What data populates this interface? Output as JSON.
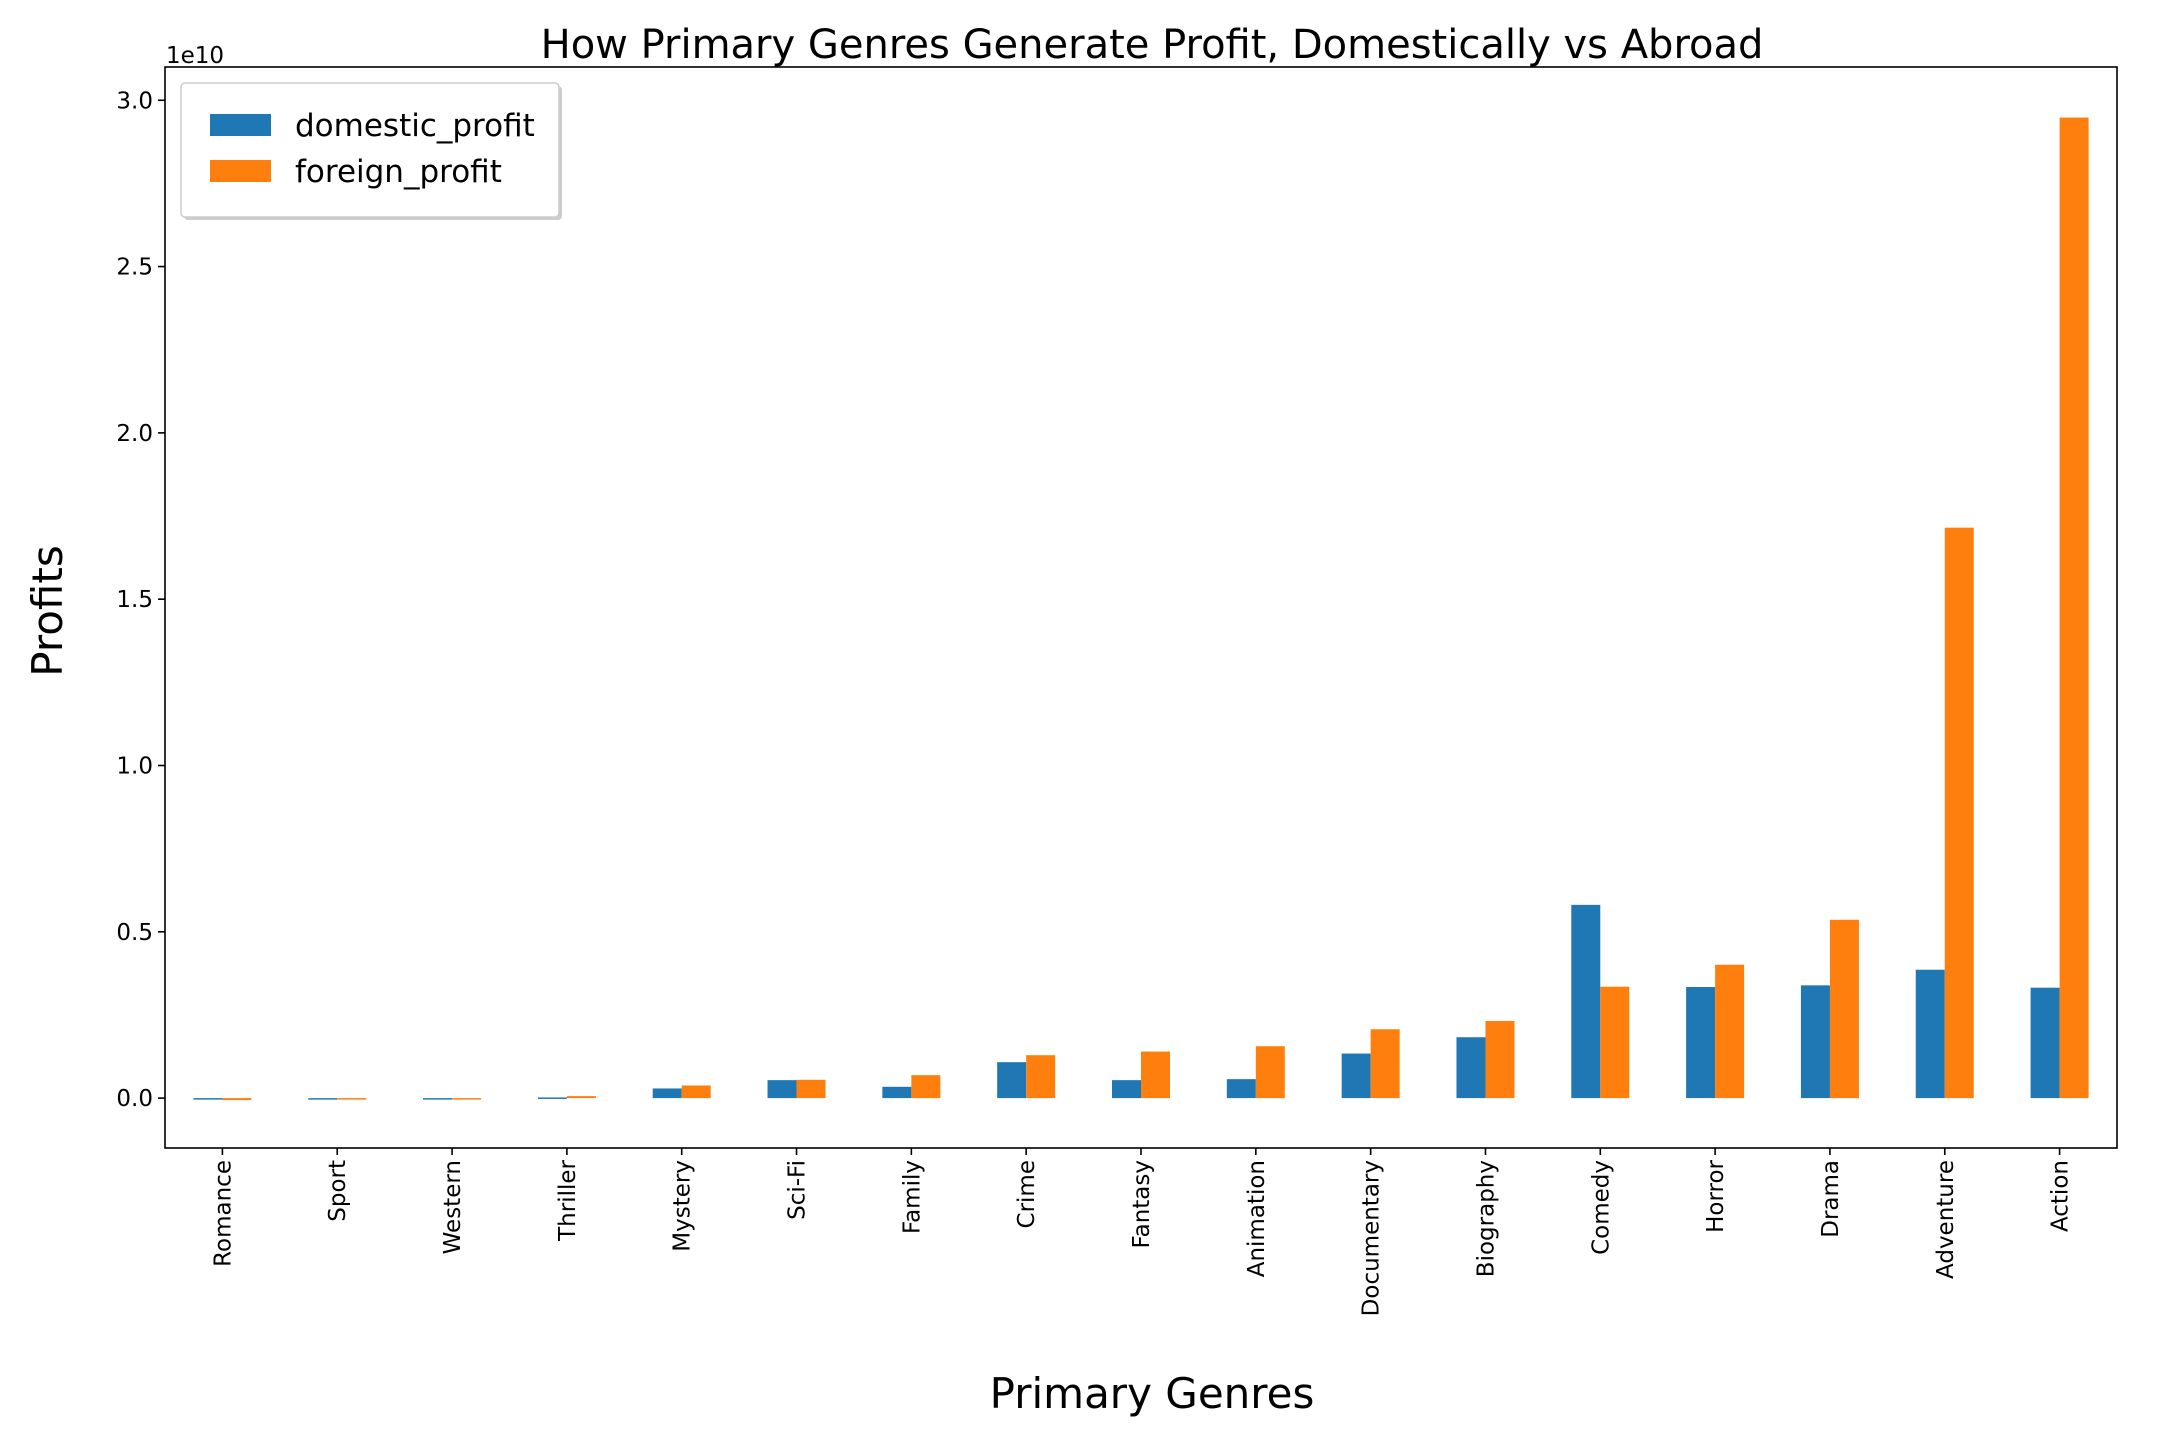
{
  "chart_data": {
    "type": "bar",
    "title": "How Primary Genres Generate Profit, Domestically vs Abroad",
    "xlabel": "Primary Genres",
    "ylabel": "Profits",
    "y_offset_label": "1e10",
    "y_scale": 10000000000,
    "ylim": [
      -1500000000.0,
      31000000000.0
    ],
    "yticks": [
      0,
      5000000000.0,
      10000000000.0,
      15000000000.0,
      20000000000.0,
      25000000000.0,
      30000000000.0
    ],
    "ytick_labels": [
      "0.0",
      "0.5",
      "1.0",
      "1.5",
      "2.0",
      "2.5",
      "3.0"
    ],
    "categories": [
      "Romance",
      "Sport",
      "Western",
      "Thriller",
      "Mystery",
      "Sci-Fi",
      "Family",
      "Crime",
      "Fantasy",
      "Animation",
      "Documentary",
      "Biography",
      "Comedy",
      "Horror",
      "Drama",
      "Adventure",
      "Action"
    ],
    "series": [
      {
        "name": "domestic_profit",
        "color": "#1f77b4",
        "values": [
          -40000000,
          -20000000,
          -20000000,
          20000000,
          290000000,
          540000000,
          340000000,
          1080000000,
          540000000,
          570000000,
          1340000000,
          1830000000,
          5810000000,
          3340000000,
          3390000000,
          3860000000,
          3320000000
        ]
      },
      {
        "name": "foreign_profit",
        "color": "#ff7f0e",
        "values": [
          -60000000,
          -20000000,
          -30000000,
          60000000,
          380000000,
          550000000,
          690000000,
          1290000000,
          1400000000,
          1560000000,
          2070000000,
          2320000000,
          3350000000,
          4010000000,
          5360000000,
          17150000000,
          29480000000
        ]
      }
    ],
    "legend_position": "upper-left",
    "grid": false
  }
}
